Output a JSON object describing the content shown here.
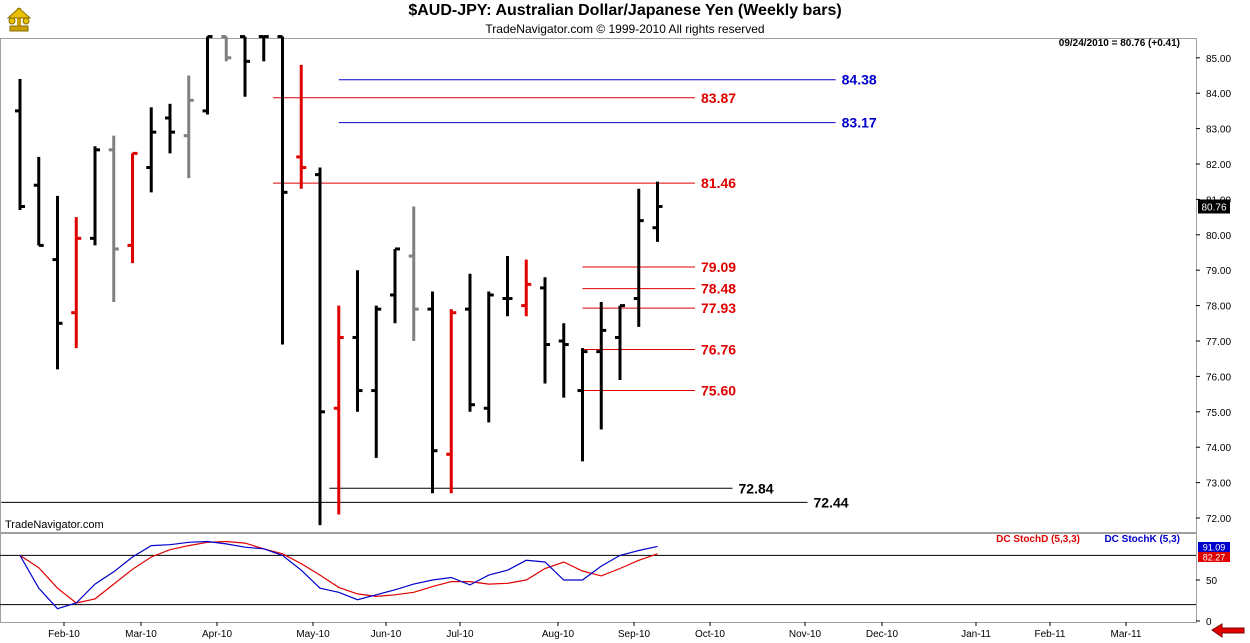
{
  "title": "$AUD-JPY:  Australian Dollar/Japanese Yen  (Weekly bars)",
  "subtitle": "TradeNavigator.com © 1999-2010 All rights reserved",
  "readout": "09/24/2010 = 80.76 (+0.41)",
  "watermark": "TradeNavigator.com",
  "last_price_label": "80.76",
  "colors": {
    "up": "#000000",
    "down": "#e00000",
    "flat": "#808080",
    "blue": "#0000cc",
    "red": "#e00000"
  },
  "chart_data": [
    {
      "type": "ohlc",
      "title": "$AUD-JPY:  Australian Dollar/Japanese Yen  (Weekly bars)",
      "ylim": [
        71.6,
        85.6
      ],
      "y_ticks": [
        "72.00",
        "73.00",
        "74.00",
        "75.00",
        "76.00",
        "77.00",
        "78.00",
        "79.00",
        "80.00",
        "81.00",
        "82.00",
        "83.00",
        "84.00",
        "85.00"
      ],
      "x_labels": [
        "Feb-10",
        "Mar-10",
        "Apr-10",
        "May-10",
        "Jun-10",
        "Jul-10",
        "Aug-10",
        "Sep-10",
        "Oct-10",
        "Nov-10",
        "Dec-10",
        "Jan-11",
        "Feb-11",
        "Mar-11"
      ],
      "bars": [
        {
          "o": 83.5,
          "h": 84.4,
          "l": 80.7,
          "c": 80.8,
          "col": "up"
        },
        {
          "o": 81.4,
          "h": 82.2,
          "l": 79.7,
          "c": 79.7,
          "col": "up"
        },
        {
          "o": 79.3,
          "h": 81.1,
          "l": 76.2,
          "c": 77.5,
          "col": "up"
        },
        {
          "o": 77.8,
          "h": 80.5,
          "l": 76.8,
          "c": 79.9,
          "col": "down"
        },
        {
          "o": 79.9,
          "h": 82.5,
          "l": 79.7,
          "c": 82.4,
          "col": "up"
        },
        {
          "o": 82.4,
          "h": 82.8,
          "l": 78.1,
          "c": 79.6,
          "col": "flat"
        },
        {
          "o": 79.7,
          "h": 82.3,
          "l": 79.2,
          "c": 82.3,
          "col": "down"
        },
        {
          "o": 81.9,
          "h": 83.6,
          "l": 81.2,
          "c": 82.9,
          "col": "up"
        },
        {
          "o": 83.3,
          "h": 83.7,
          "l": 82.3,
          "c": 82.9,
          "col": "up"
        },
        {
          "o": 82.8,
          "h": 84.5,
          "l": 81.6,
          "c": 83.8,
          "col": "flat"
        },
        {
          "o": 83.5,
          "h": 85.6,
          "l": 83.4,
          "c": 85.6,
          "col": "up"
        },
        {
          "o": 85.6,
          "h": 85.6,
          "l": 84.9,
          "c": 85.0,
          "col": "flat"
        },
        {
          "o": 85.6,
          "h": 85.6,
          "l": 83.9,
          "c": 84.9,
          "col": "up"
        },
        {
          "o": 85.6,
          "h": 85.6,
          "l": 84.9,
          "c": 85.6,
          "col": "up"
        },
        {
          "o": 85.6,
          "h": 85.6,
          "l": 76.9,
          "c": 81.2,
          "col": "up"
        },
        {
          "o": 82.2,
          "h": 84.8,
          "l": 81.3,
          "c": 81.9,
          "col": "down"
        },
        {
          "o": 81.7,
          "h": 81.9,
          "l": 71.8,
          "c": 75.0,
          "col": "up"
        },
        {
          "o": 75.1,
          "h": 78.0,
          "l": 72.1,
          "c": 77.1,
          "col": "down"
        },
        {
          "o": 77.1,
          "h": 79.0,
          "l": 75.0,
          "c": 75.6,
          "col": "up"
        },
        {
          "o": 75.6,
          "h": 78.0,
          "l": 73.7,
          "c": 77.9,
          "col": "up"
        },
        {
          "o": 78.3,
          "h": 79.6,
          "l": 77.5,
          "c": 79.6,
          "col": "up"
        },
        {
          "o": 79.4,
          "h": 80.8,
          "l": 77.0,
          "c": 77.9,
          "col": "flat"
        },
        {
          "o": 77.9,
          "h": 78.4,
          "l": 72.7,
          "c": 73.9,
          "col": "up"
        },
        {
          "o": 73.8,
          "h": 77.9,
          "l": 72.7,
          "c": 77.8,
          "col": "down"
        },
        {
          "o": 77.9,
          "h": 78.9,
          "l": 75.0,
          "c": 75.2,
          "col": "up"
        },
        {
          "o": 75.1,
          "h": 78.4,
          "l": 74.7,
          "c": 78.3,
          "col": "up"
        },
        {
          "o": 78.2,
          "h": 79.4,
          "l": 77.7,
          "c": 78.2,
          "col": "up"
        },
        {
          "o": 78.0,
          "h": 79.3,
          "l": 77.7,
          "c": 78.6,
          "col": "down"
        },
        {
          "o": 78.5,
          "h": 78.8,
          "l": 75.8,
          "c": 76.9,
          "col": "up"
        },
        {
          "o": 77.0,
          "h": 77.5,
          "l": 75.4,
          "c": 76.9,
          "col": "up"
        },
        {
          "o": 75.6,
          "h": 76.8,
          "l": 73.6,
          "c": 76.7,
          "col": "up"
        },
        {
          "o": 76.7,
          "h": 78.1,
          "l": 74.5,
          "c": 77.3,
          "col": "up"
        },
        {
          "o": 77.1,
          "h": 78.0,
          "l": 75.9,
          "c": 78.0,
          "col": "up"
        },
        {
          "o": 78.2,
          "h": 81.3,
          "l": 77.4,
          "c": 80.4,
          "col": "up"
        },
        {
          "o": 80.2,
          "h": 81.5,
          "l": 79.8,
          "c": 80.8,
          "col": "up"
        }
      ],
      "levels": [
        {
          "value": 84.38,
          "label": "84.38",
          "color": "blue",
          "from": 17,
          "to": 43.5
        },
        {
          "value": 83.87,
          "label": "83.87",
          "color": "red",
          "from": 13.5,
          "to": 36
        },
        {
          "value": 83.17,
          "label": "83.17",
          "color": "blue",
          "from": 17,
          "to": 43.5
        },
        {
          "value": 81.46,
          "label": "81.46",
          "color": "red",
          "from": 13.5,
          "to": 36
        },
        {
          "value": 79.09,
          "label": "79.09",
          "color": "red",
          "from": 30,
          "to": 36
        },
        {
          "value": 78.48,
          "label": "78.48",
          "color": "red",
          "from": 30,
          "to": 36
        },
        {
          "value": 77.93,
          "label": "77.93",
          "color": "red",
          "from": 30,
          "to": 36
        },
        {
          "value": 76.76,
          "label": "76.76",
          "color": "red",
          "from": 30,
          "to": 36
        },
        {
          "value": 75.6,
          "label": "75.60",
          "color": "red",
          "from": 30,
          "to": 36
        },
        {
          "value": 72.84,
          "label": "72.84",
          "color": "black",
          "from": 16.5,
          "to": 38
        },
        {
          "value": 72.44,
          "label": "72.44",
          "color": "black",
          "from": -1,
          "to": 42
        }
      ]
    },
    {
      "type": "line",
      "title": "",
      "ylim": [
        0,
        100
      ],
      "y_ticks": [
        "50",
        "0"
      ],
      "ref_lines": [
        80,
        20
      ],
      "legend": [
        {
          "name": "DC StochD (5,3,3)",
          "color": "red"
        },
        {
          "name": "DC StochK (5,3)",
          "color": "blue"
        }
      ],
      "readouts": [
        {
          "value": "91.09",
          "color": "blue"
        },
        {
          "value": "82.27",
          "color": "red"
        }
      ],
      "series": [
        {
          "name": "DC StochD (5,3,3)",
          "color": "red",
          "values": [
            80,
            65,
            40,
            22,
            27,
            45,
            63,
            78,
            87,
            92,
            96,
            97,
            95,
            88,
            82,
            70,
            56,
            41,
            33,
            30,
            32,
            35,
            42,
            48,
            48,
            45,
            46,
            50,
            64,
            72,
            61,
            55,
            64,
            74,
            82
          ]
        },
        {
          "name": "DC StochK (5,3)",
          "color": "blue",
          "values": [
            80,
            40,
            15,
            22,
            45,
            60,
            78,
            92,
            93,
            96,
            97,
            94,
            90,
            88,
            80,
            62,
            40,
            35,
            26,
            32,
            38,
            45,
            50,
            53,
            44,
            56,
            62,
            74,
            72,
            50,
            50,
            67,
            80,
            86,
            91
          ]
        }
      ]
    }
  ]
}
